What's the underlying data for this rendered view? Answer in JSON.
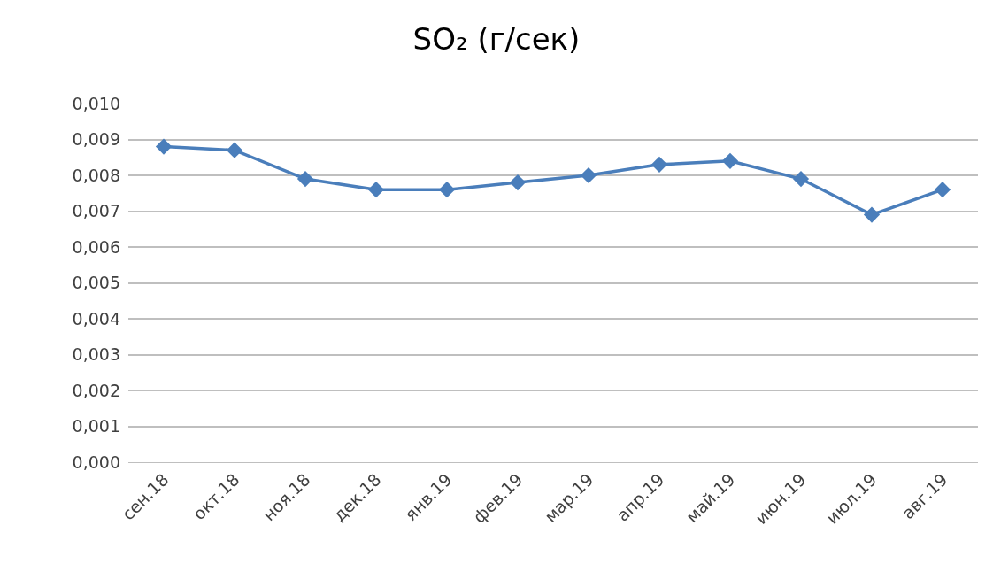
{
  "chart_data": {
    "type": "line",
    "title": "SO₂ (г/сек)",
    "categories": [
      "сен.18",
      "окт.18",
      "ноя.18",
      "дек.18",
      "янв.19",
      "фев.19",
      "мар.19",
      "апр.19",
      "май.19",
      "июн.19",
      "июл.19",
      "авг.19"
    ],
    "series": [
      {
        "color": "#4a7ebb",
        "values": [
          0.0088,
          0.0087,
          0.0079,
          0.0076,
          0.0076,
          0.0078,
          0.008,
          0.0083,
          0.0084,
          0.0079,
          0.0069,
          0.0076
        ]
      }
    ],
    "ylim": [
      0,
      0.01
    ],
    "yticks": [
      {
        "value": 0,
        "label": "0,000"
      },
      {
        "value": 0.001,
        "label": "0,001"
      },
      {
        "value": 0.002,
        "label": "0,002"
      },
      {
        "value": 0.003,
        "label": "0,003"
      },
      {
        "value": 0.004,
        "label": "0,004"
      },
      {
        "value": 0.005,
        "label": "0,005"
      },
      {
        "value": 0.006,
        "label": "0,006"
      },
      {
        "value": 0.007,
        "label": "0,007"
      },
      {
        "value": 0.008,
        "label": "0,008"
      },
      {
        "value": 0.009,
        "label": "0,009"
      },
      {
        "value": 0.01,
        "label": "0,010"
      }
    ],
    "grid": "y",
    "marker": "diamond",
    "line_style": "solid"
  }
}
